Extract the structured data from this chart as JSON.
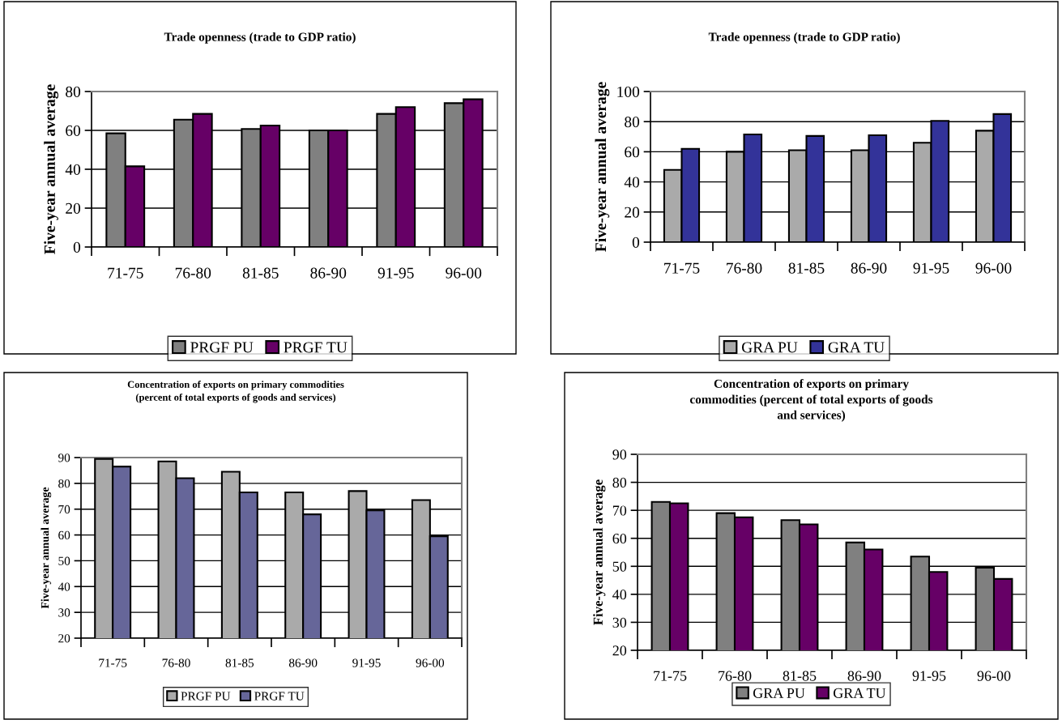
{
  "chart_data": [
    {
      "type": "bar",
      "title": "Trade openness (trade to GDP ratio)",
      "ylabel": "Five-year annual average",
      "categories": [
        "71-75",
        "76-80",
        "81-85",
        "86-90",
        "91-95",
        "96-00"
      ],
      "series": [
        {
          "name": "PRGF PU",
          "color": "#808080",
          "values": [
            58.5,
            65.5,
            60.7,
            60,
            68.5,
            74
          ]
        },
        {
          "name": "PRGF TU",
          "color": "#660066",
          "values": [
            41.5,
            68.5,
            62.5,
            60,
            72,
            76
          ]
        }
      ],
      "ylim": [
        0,
        80
      ],
      "yticks": [
        0,
        20,
        40,
        60,
        80
      ],
      "grid": "y",
      "legend": "bottom"
    },
    {
      "type": "bar",
      "title": "Trade openness (trade to GDP ratio)",
      "ylabel": "Five-year annual average",
      "categories": [
        "71-75",
        "76-80",
        "81-85",
        "86-90",
        "91-95",
        "96-00"
      ],
      "series": [
        {
          "name": "GRA PU",
          "color": "#aaaaaa",
          "values": [
            48,
            60,
            61,
            61,
            66,
            74
          ]
        },
        {
          "name": "GRA TU",
          "color": "#333399",
          "values": [
            62,
            71.5,
            70.5,
            71,
            80.5,
            85
          ]
        }
      ],
      "ylim": [
        0,
        100
      ],
      "yticks": [
        0,
        20,
        40,
        60,
        80,
        100
      ],
      "grid": "y",
      "legend": "bottom"
    },
    {
      "type": "bar",
      "title": "Concentration of exports on primary commodities\n(percent of total exports of goods and services)",
      "ylabel": "Five-year annual average",
      "categories": [
        "71-75",
        "76-80",
        "81-85",
        "86-90",
        "91-95",
        "96-00"
      ],
      "series": [
        {
          "name": "PRGF PU",
          "color": "#aaaaaa",
          "values": [
            89.5,
            88.5,
            84.5,
            76.5,
            77,
            73.5
          ]
        },
        {
          "name": "PRGF TU",
          "color": "#666699",
          "values": [
            86.5,
            82,
            76.5,
            68,
            69.5,
            59.5
          ]
        }
      ],
      "ylim": [
        20,
        90
      ],
      "yticks": [
        20,
        30,
        40,
        50,
        60,
        70,
        80,
        90
      ],
      "grid": "y",
      "legend": "bottom"
    },
    {
      "type": "bar",
      "title": "Concentration of exports on primary\ncommodities (percent of total exports of goods\nand services)",
      "ylabel": "Five-year annual average",
      "categories": [
        "71-75",
        "76-80",
        "81-85",
        "86-90",
        "91-95",
        "96-00"
      ],
      "series": [
        {
          "name": "GRA PU",
          "color": "#808080",
          "values": [
            73,
            69,
            66.5,
            58.5,
            53.5,
            49.5
          ]
        },
        {
          "name": "GRA TU",
          "color": "#660066",
          "values": [
            72.5,
            67.5,
            65,
            56,
            48,
            45.5
          ]
        }
      ],
      "ylim": [
        20,
        90
      ],
      "yticks": [
        20,
        30,
        40,
        50,
        60,
        70,
        80,
        90
      ],
      "grid": "y",
      "legend": "bottom"
    }
  ]
}
